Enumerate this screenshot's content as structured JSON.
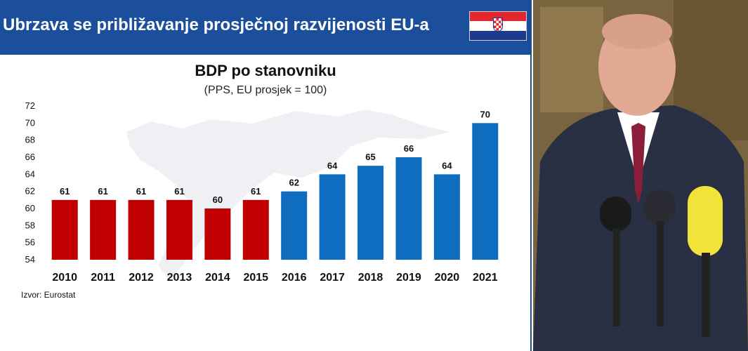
{
  "header": {
    "title": "Ubrzava se približavanje prosječnoj razvijenosti EU-a",
    "flag_icon": "croatia-flag-icon"
  },
  "chart_data": {
    "type": "bar",
    "title": "BDP po stanovniku",
    "subtitle": "(PPS, EU prosjek = 100)",
    "categories": [
      "2010",
      "2011",
      "2012",
      "2013",
      "2014",
      "2015",
      "2016",
      "2017",
      "2018",
      "2019",
      "2020",
      "2021"
    ],
    "values": [
      61,
      61,
      61,
      61,
      60,
      61,
      62,
      64,
      65,
      66,
      64,
      70
    ],
    "bar_colors": [
      "#c00000",
      "#c00000",
      "#c00000",
      "#c00000",
      "#c00000",
      "#c00000",
      "#0f6dbf",
      "#0f6dbf",
      "#0f6dbf",
      "#0f6dbf",
      "#0f6dbf",
      "#0f6dbf"
    ],
    "ylim": [
      54,
      72
    ],
    "yticks": [
      "54",
      "56",
      "58",
      "60",
      "62",
      "64",
      "66",
      "68",
      "70",
      "72"
    ],
    "xlabel": "",
    "ylabel": "",
    "grid": false,
    "source": "Izvor: Eurostat"
  },
  "colors": {
    "header_bg": "#1b4f9c",
    "bar_red": "#c00000",
    "bar_blue": "#0f6dbf"
  }
}
